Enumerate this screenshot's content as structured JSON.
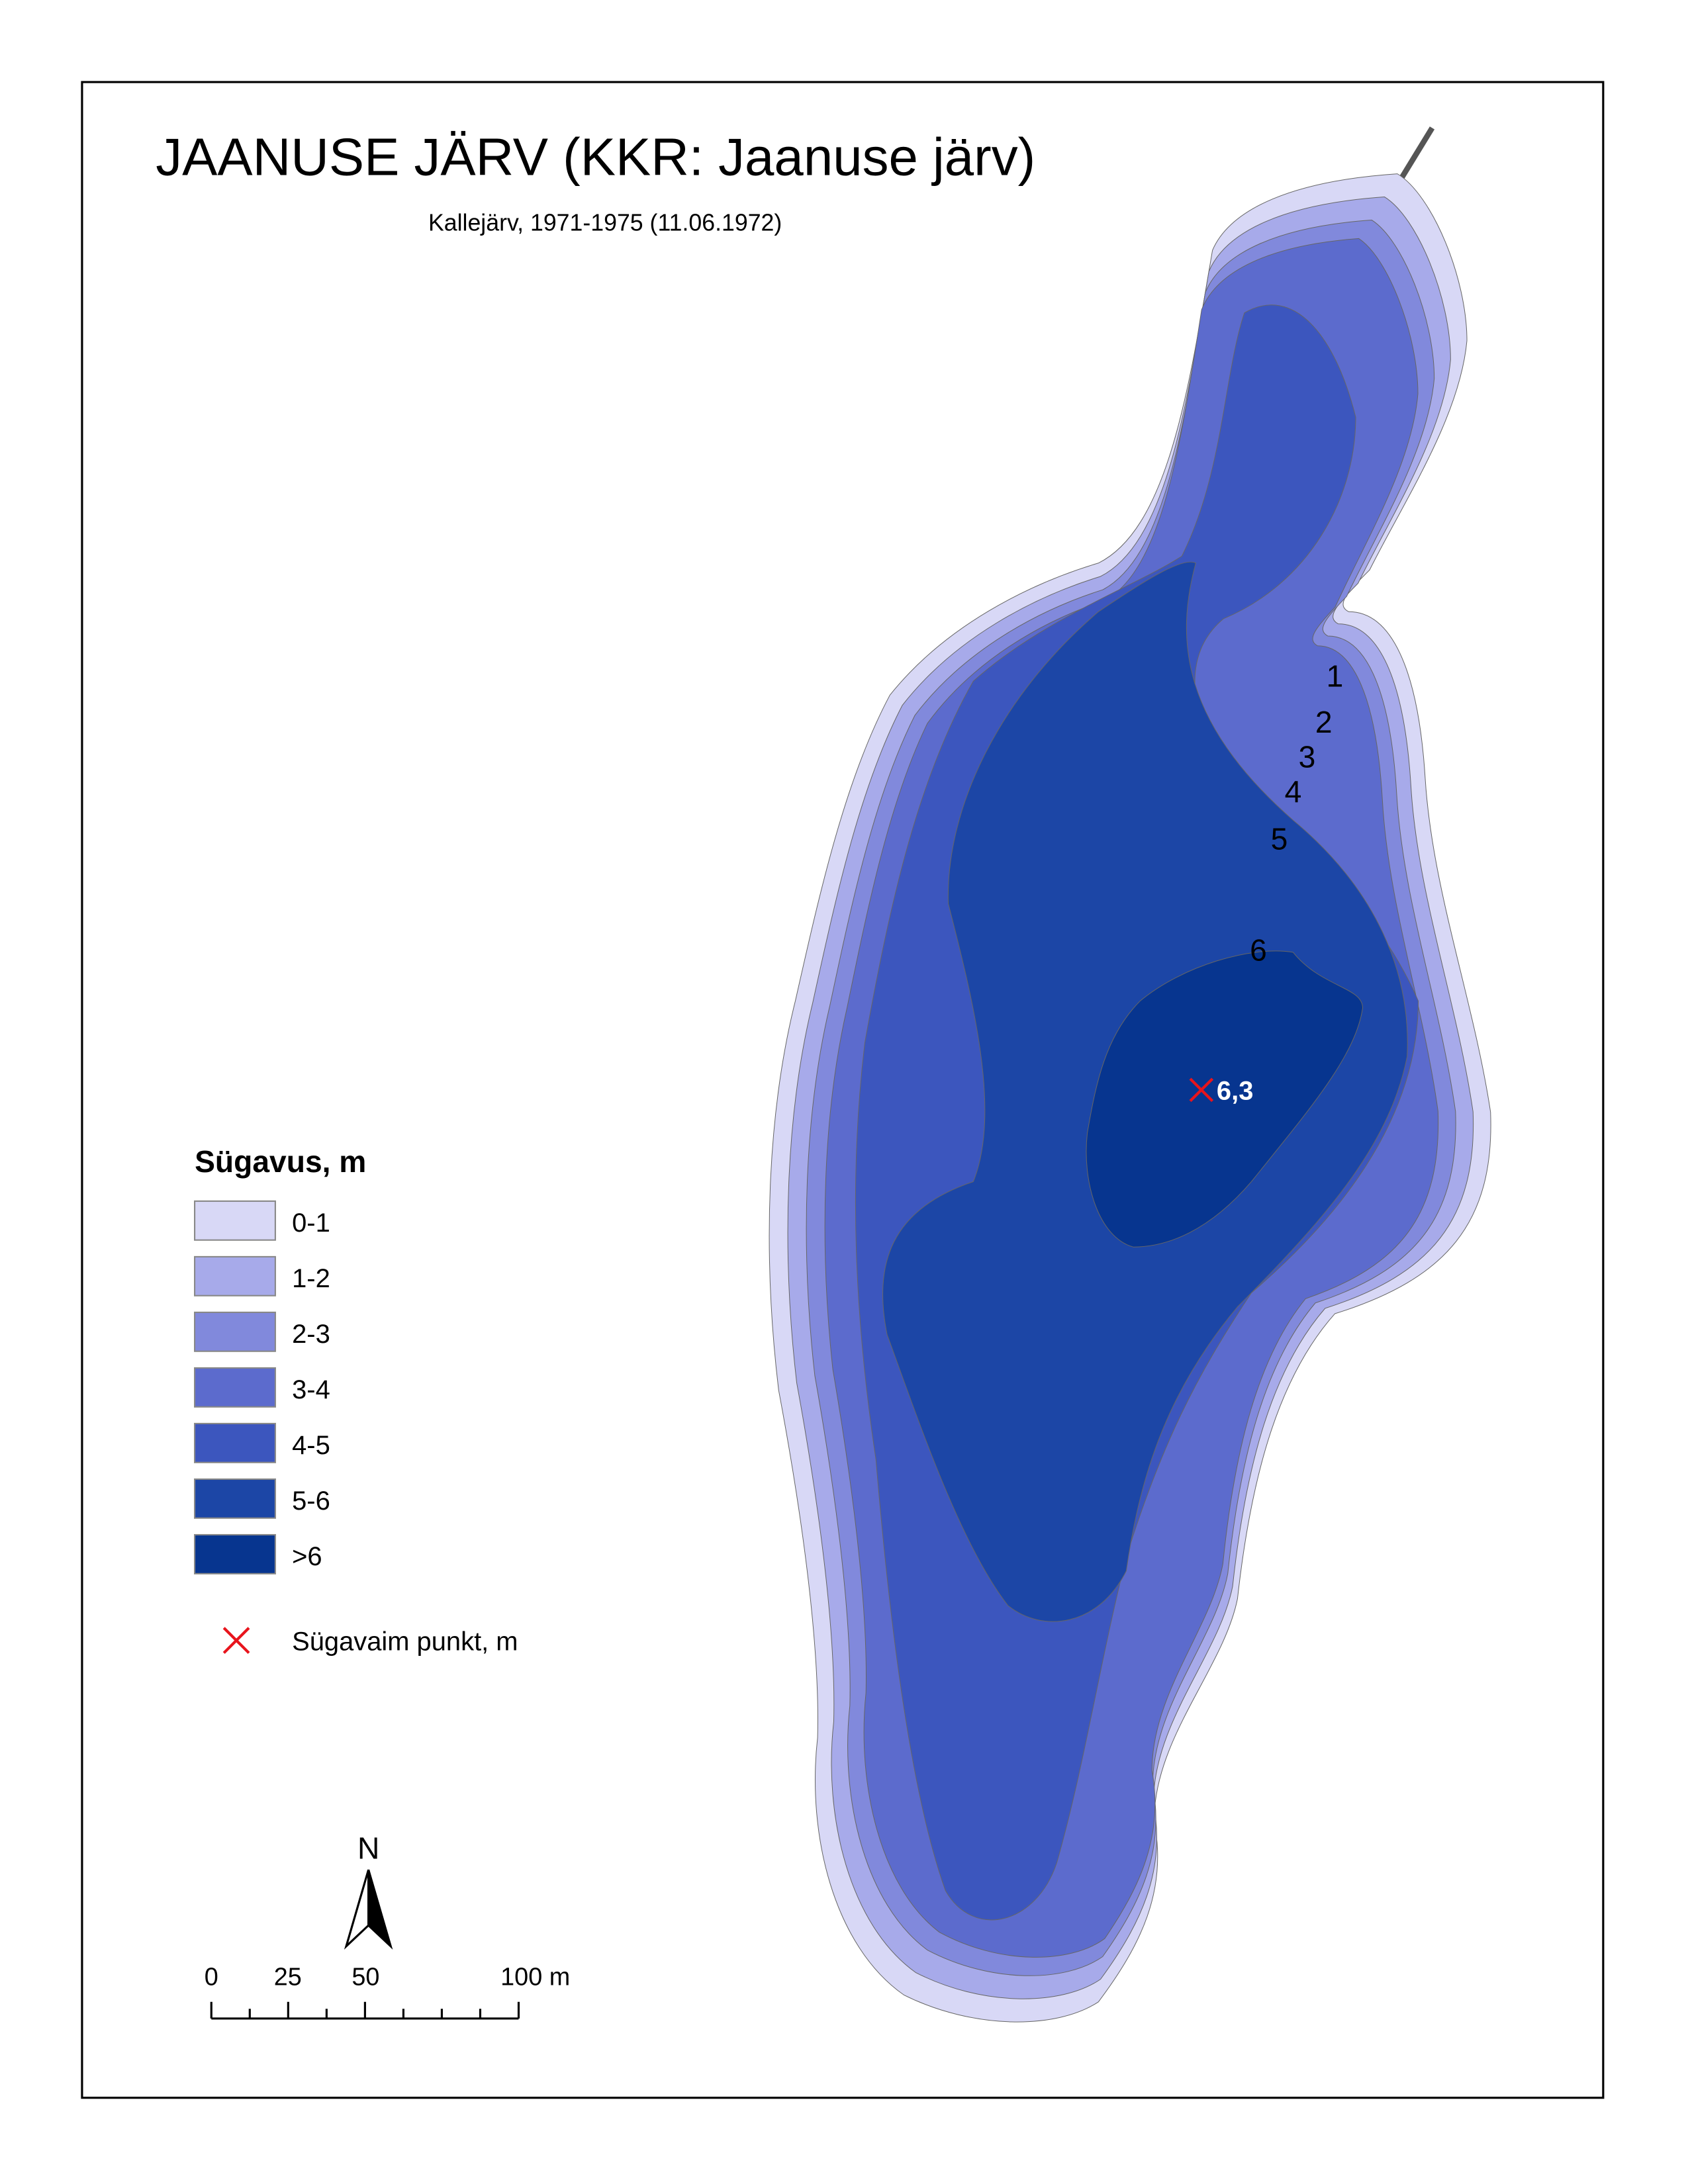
{
  "title": "JAANUSE JÄRV (KKR: Jaanuse järv)",
  "subtitle": "Kallejärv, 1971-1975 (11.06.1972)",
  "contour_labels": [
    "1",
    "2",
    "3",
    "4",
    "5",
    "6"
  ],
  "deepest_point": "6,3",
  "legend": {
    "title": "Sügavus, m",
    "items": [
      {
        "label": "0-1",
        "color": "#d8d8f6"
      },
      {
        "label": "1-2",
        "color": "#a7aaea"
      },
      {
        "label": "2-3",
        "color": "#8189dc"
      },
      {
        "label": "3-4",
        "color": "#5c6bcd"
      },
      {
        "label": "4-5",
        "color": "#3c56be"
      },
      {
        "label": "5-6",
        "color": "#1c46a6"
      },
      {
        "label": ">6",
        "color": "#07358f"
      }
    ],
    "point_label": "Sügavaim punkt, m"
  },
  "north": "N",
  "scale_labels": [
    "0",
    "25",
    "50",
    "100 m"
  ]
}
